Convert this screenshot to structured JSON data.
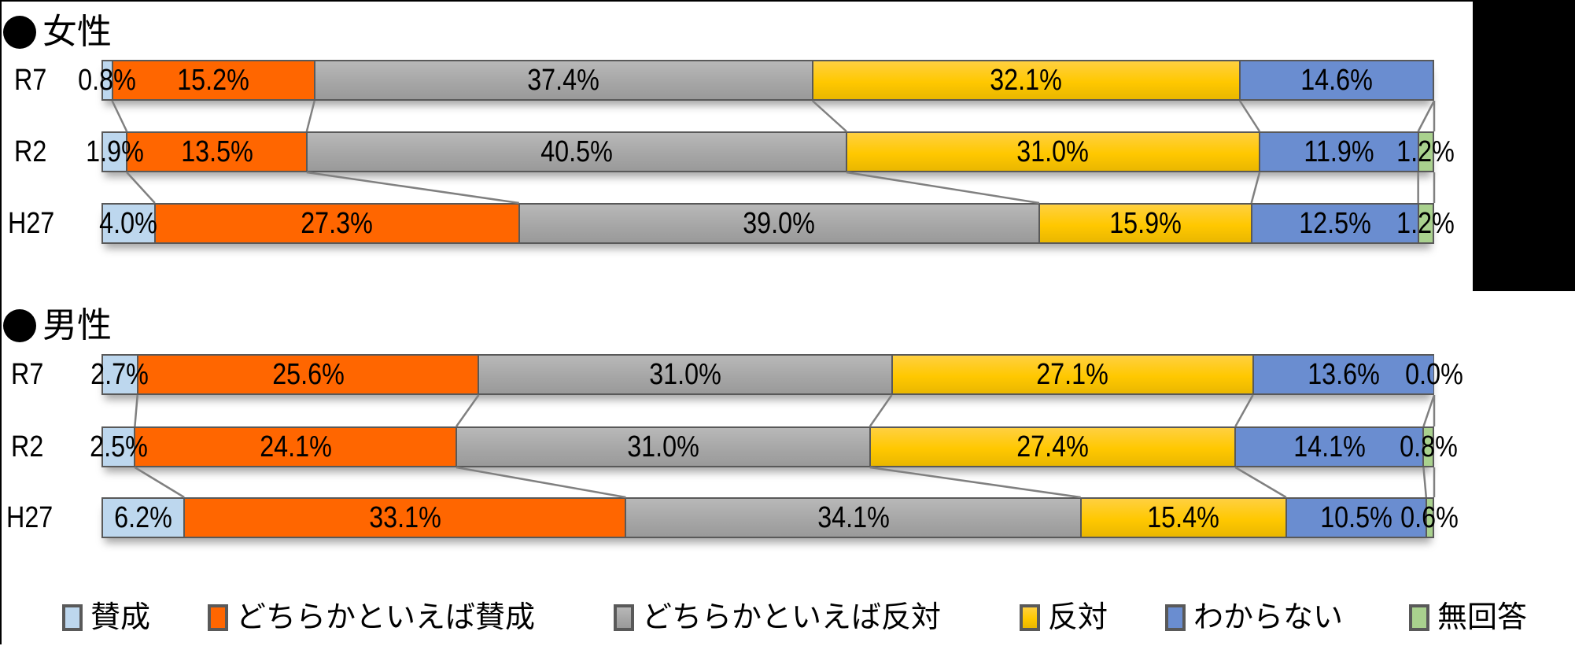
{
  "chart_data": {
    "type": "bar",
    "orientation": "horizontal-stacked-100",
    "categories_legend": [
      "賛成",
      "どちらかといえば賛成",
      "どちらかといえば反対",
      "反対",
      "わからない",
      "無回答"
    ],
    "colors": [
      "#BDD7EE",
      "#FF6600",
      "#A5A5A5",
      "#FFC800",
      "#6A8DD0",
      "#A9D18E"
    ],
    "panels": [
      {
        "title": "女性",
        "rows": [
          {
            "label": "R7",
            "values": [
              0.8,
              15.2,
              37.4,
              32.1,
              14.6,
              null
            ],
            "labels": [
              "0.8%",
              "15.2%",
              "37.4%",
              "32.1%",
              "14.6%",
              ""
            ]
          },
          {
            "label": "R2",
            "values": [
              1.9,
              13.5,
              40.5,
              31.0,
              11.9,
              1.2
            ],
            "labels": [
              "1.9%",
              "13.5%",
              "40.5%",
              "31.0%",
              "11.9%",
              "1.2%"
            ]
          },
          {
            "label": "H27",
            "values": [
              4.0,
              27.3,
              39.0,
              15.9,
              12.5,
              1.2
            ],
            "labels": [
              "4.0%",
              "27.3%",
              "39.0%",
              "15.9%",
              "12.5%",
              "1.2%"
            ]
          }
        ]
      },
      {
        "title": "男性",
        "rows": [
          {
            "label": "R7",
            "values": [
              2.7,
              25.6,
              31.0,
              27.1,
              13.6,
              0.0
            ],
            "labels": [
              "2.7%",
              "25.6%",
              "31.0%",
              "27.1%",
              "13.6%",
              "0.0%"
            ]
          },
          {
            "label": "R2",
            "values": [
              2.5,
              24.1,
              31.0,
              27.4,
              14.1,
              0.8
            ],
            "labels": [
              "2.5%",
              "24.1%",
              "31.0%",
              "27.4%",
              "14.1%",
              "0.8%"
            ]
          },
          {
            "label": "H27",
            "values": [
              6.2,
              33.1,
              34.1,
              15.4,
              10.5,
              0.6
            ],
            "labels": [
              "6.2%",
              "33.1%",
              "34.1%",
              "15.4%",
              "10.5%",
              "0.6%"
            ]
          }
        ]
      }
    ],
    "title": "",
    "xlabel": "",
    "ylabel": "",
    "xlim": [
      0,
      100
    ],
    "grid": false,
    "legend_position": "bottom",
    "series_lines": true
  },
  "sections": {
    "female": {
      "bullet": "●",
      "title": "女性"
    },
    "male": {
      "bullet": "●",
      "title": "男性"
    }
  },
  "legend": [
    {
      "label": "賛成",
      "color": "#BDD7EE"
    },
    {
      "label": "どちらかといえば賛成",
      "color": "#FF6600"
    },
    {
      "label": "どちらかといえば反対",
      "color": "#A5A5A5"
    },
    {
      "label": "反対",
      "color": "#FFC800"
    },
    {
      "label": "わからない",
      "color": "#6A8DD0"
    },
    {
      "label": "無回答",
      "color": "#A9D18E"
    }
  ]
}
